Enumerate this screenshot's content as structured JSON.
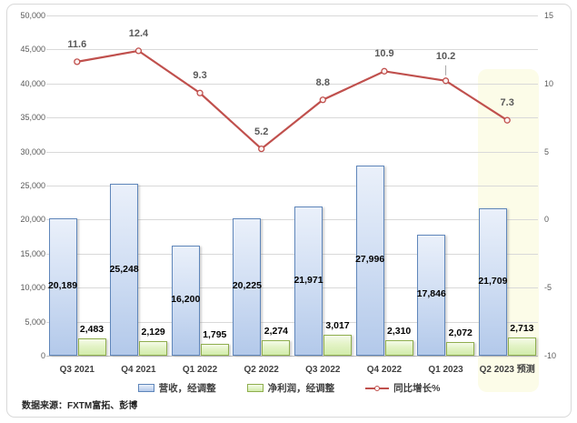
{
  "source_note": "数据来源：FXTM富拓、彭博",
  "chart_data": {
    "type": "combo-bar-line",
    "title": "",
    "categories": [
      "Q3 2021",
      "Q4 2021",
      "Q1 2022",
      "Q2 2022",
      "Q3 2022",
      "Q4 2022",
      "Q1 2023",
      "Q2 2023 预测"
    ],
    "series": [
      {
        "name": "营收，经调整",
        "chart_type": "bar",
        "axis": "left",
        "values": [
          20189,
          25248,
          16200,
          20225,
          21971,
          27996,
          17846,
          21709
        ],
        "labels": [
          "20,189",
          "25,248",
          "16,200",
          "20,225",
          "21,971",
          "27,996",
          "17,846",
          "21,709"
        ]
      },
      {
        "name": "净利润，经调整",
        "chart_type": "bar",
        "axis": "left",
        "values": [
          2483,
          2129,
          1795,
          2274,
          3017,
          2310,
          2072,
          2713
        ],
        "labels": [
          "2,483",
          "2,129",
          "1,795",
          "2,274",
          "3,017",
          "2,310",
          "2,072",
          "2,713"
        ]
      },
      {
        "name": "同比增长%",
        "chart_type": "line",
        "axis": "right",
        "values": [
          11.6,
          12.4,
          9.3,
          5.2,
          8.8,
          10.9,
          10.2,
          7.3
        ],
        "labels": [
          "11.6",
          "12.4",
          "9.3",
          "5.2",
          "8.8",
          "10.9",
          "10.2",
          "7.3"
        ]
      }
    ],
    "left_axis": {
      "min": 0,
      "max": 50000,
      "step": 5000,
      "ticks": [
        "0",
        "5,000",
        "10,000",
        "15,000",
        "20,000",
        "25,000",
        "30,000",
        "35,000",
        "40,000",
        "45,000",
        "50,000"
      ]
    },
    "right_axis": {
      "min": -10,
      "max": 15,
      "step": 5,
      "ticks": [
        "-10",
        "-5",
        "0",
        "5",
        "10",
        "15"
      ]
    },
    "grid": true,
    "legend_position": "bottom",
    "highlight_category_index": 7,
    "callout_point_index": 6
  },
  "colors": {
    "revenue_border": "#5f86ba",
    "revenue_fill_top": "#eaf0fa",
    "revenue_fill_bottom": "#b3c9ea",
    "profit_border": "#8fae4e",
    "profit_fill_top": "#f5fbe9",
    "profit_fill_bottom": "#d2ecab",
    "line": "#c0504d",
    "marker_fill": "#fbf3f2",
    "gridline": "#d9d9d9",
    "axis_text": "#595959",
    "highlight_bg": "#fcfce8"
  }
}
